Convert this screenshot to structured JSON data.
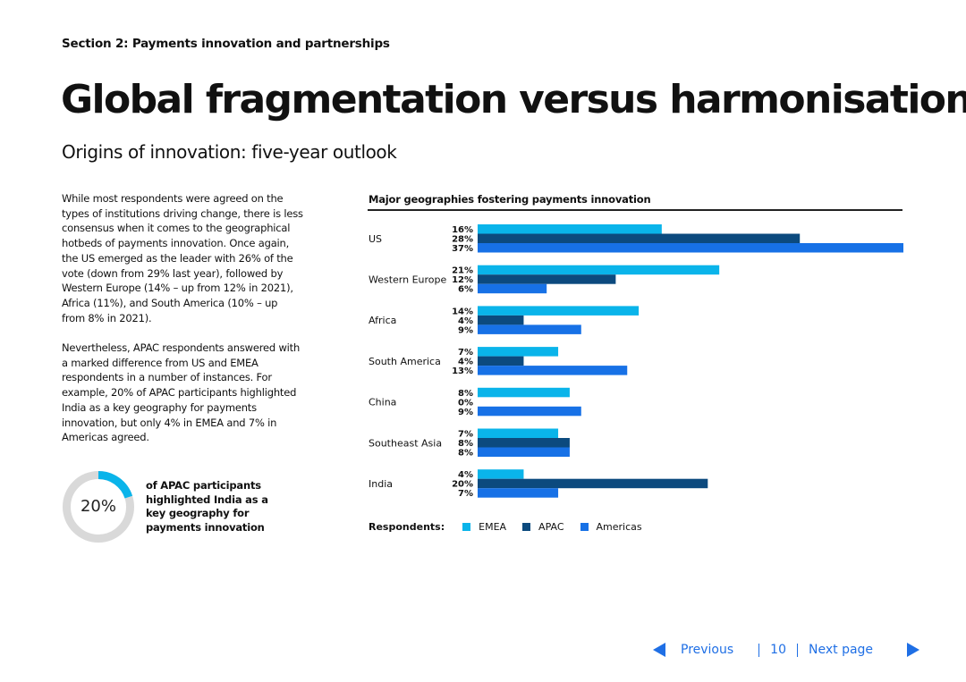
{
  "header": {
    "section_label": "Section 2: Payments innovation and partnerships",
    "title": "Global fragmentation versus harmonisation",
    "subtitle": "Origins of innovation: five-year outlook"
  },
  "body": {
    "paragraph_1": "While most respondents were agreed on the types of institutions driving change, there is less consensus when it comes to the geographical hotbeds of payments innovation. Once again, the US emerged as the leader with 26% of the vote (down from 29% last year), followed by Western Europe (14% – up from 12% in 2021), Africa (11%), and South America (10% – up from 8% in 2021).",
    "paragraph_2": "Nevertheless, APAC respondents answered with a marked difference from US and EMEA respondents in a number of instances. For example, 20% of APAC participants highlighted India as a key geography for payments innovation, but only 4% in EMEA and 7% in Americas agreed."
  },
  "callout": {
    "value_label": "20%",
    "value": 20,
    "text": "of APAC participants highlighted India as a key geography for payments innovation",
    "ring_color": "#0ab4ea",
    "track_color": "#d9d9d9"
  },
  "chart_data": {
    "type": "bar",
    "orientation": "horizontal",
    "title": "Major geographies fostering payments innovation",
    "categories": [
      "US",
      "Western Europe",
      "Africa",
      "South America",
      "China",
      "Southeast Asia",
      "India"
    ],
    "series": [
      {
        "name": "EMEA",
        "color": "#0ab4ea",
        "values": [
          16,
          21,
          14,
          7,
          8,
          7,
          4
        ]
      },
      {
        "name": "APAC",
        "color": "#0c4a7e",
        "values": [
          28,
          12,
          4,
          4,
          0,
          8,
          20
        ]
      },
      {
        "name": "Americas",
        "color": "#1771e6",
        "values": [
          37,
          6,
          9,
          13,
          9,
          8,
          7
        ]
      }
    ],
    "value_suffix": "%",
    "xlim": [
      0,
      37
    ],
    "legend_title": "Respondents:",
    "legend_position": "bottom-left"
  },
  "footer": {
    "prev_label": "Previous",
    "page_number": "10",
    "next_label": "Next page",
    "accent_color": "#1f6fe5"
  }
}
